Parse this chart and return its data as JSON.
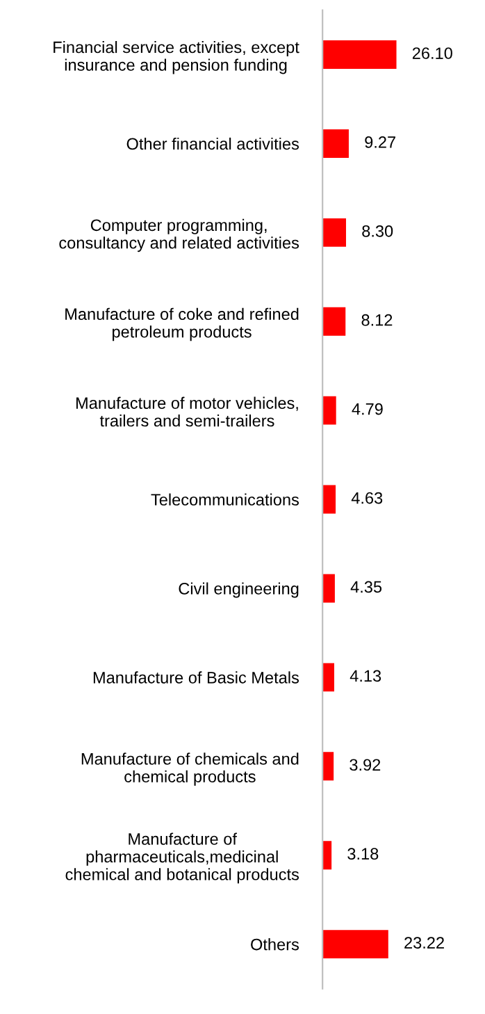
{
  "chart_data": {
    "type": "bar",
    "orientation": "horizontal",
    "data_labels": true,
    "color": "#ff0000",
    "categories": [
      "Financial service activities, except\ninsurance and pension funding",
      "Other financial activities",
      "Computer programming,\nconsultancy and related activities",
      "Manufacture of coke and refined\npetroleum products",
      "Manufacture of motor vehicles,\ntrailers and semi-trailers",
      "Telecommunications",
      "Civil engineering",
      "Manufacture of Basic Metals",
      "Manufacture of chemicals and\nchemical products",
      "Manufacture of\npharmaceuticals,medicinal\nchemical and botanical products",
      "Others"
    ],
    "values": [
      26.1,
      9.27,
      8.3,
      8.12,
      4.79,
      4.63,
      4.35,
      4.13,
      3.92,
      3.18,
      23.22
    ],
    "value_labels": [
      "26.10",
      "9.27",
      "8.30",
      "8.12",
      "4.79",
      "4.63",
      "4.35",
      "4.13",
      "3.92",
      "3.18",
      "23.22"
    ]
  }
}
